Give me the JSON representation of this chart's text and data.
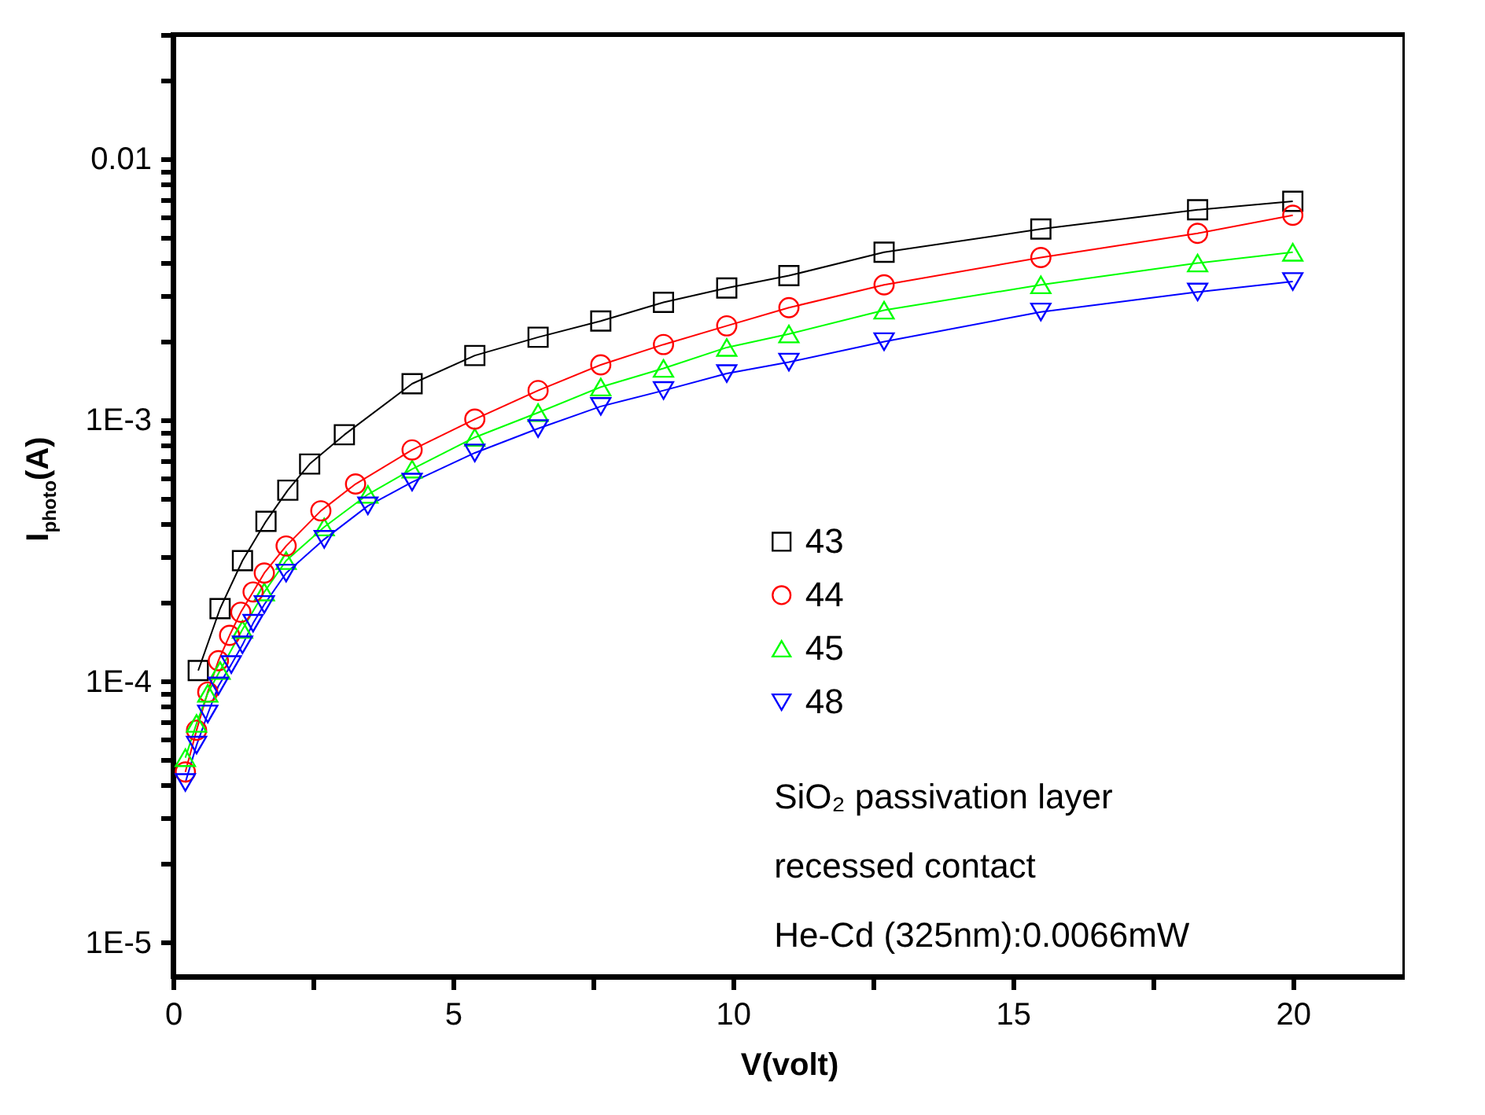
{
  "chart_data": {
    "type": "line",
    "xlabel": "V(volt)",
    "ylabel": "I$_{photo}$(A)",
    "log": "y",
    "xlim": [
      0,
      22
    ],
    "ylim": [
      7.4e-06,
      0.03
    ],
    "xticks": [
      0,
      {
        "value": 2.5,
        "label": null
      },
      5,
      {
        "value": 7.5,
        "label": null
      },
      10,
      {
        "value": 12.5,
        "label": null
      },
      15,
      {
        "value": 17.5,
        "label": null
      },
      20
    ],
    "yticks": [
      {
        "value": 1e-05,
        "label": "1E-5"
      },
      {
        "value": 2e-05,
        "label": null
      },
      {
        "value": 3e-05,
        "label": null
      },
      {
        "value": 4e-05,
        "label": null
      },
      {
        "value": 5e-05,
        "label": null
      },
      {
        "value": 6e-05,
        "label": null
      },
      {
        "value": 7e-05,
        "label": null
      },
      {
        "value": 8e-05,
        "label": null
      },
      {
        "value": 9e-05,
        "label": null
      },
      {
        "value": 0.0001,
        "label": "1E-4"
      },
      {
        "value": 0.0002,
        "label": null
      },
      {
        "value": 0.0003,
        "label": null
      },
      {
        "value": 0.0004,
        "label": null
      },
      {
        "value": 0.0005,
        "label": null
      },
      {
        "value": 0.0006,
        "label": null
      },
      {
        "value": 0.0007,
        "label": null
      },
      {
        "value": 0.0008,
        "label": null
      },
      {
        "value": 0.0009,
        "label": null
      },
      {
        "value": 0.001,
        "label": "1E-3"
      },
      {
        "value": 0.002,
        "label": null
      },
      {
        "value": 0.003,
        "label": null
      },
      {
        "value": 0.004,
        "label": null
      },
      {
        "value": 0.005,
        "label": null
      },
      {
        "value": 0.006,
        "label": null
      },
      {
        "value": 0.007,
        "label": null
      },
      {
        "value": 0.008,
        "label": null
      },
      {
        "value": 0.009,
        "label": null
      },
      {
        "value": 0.01,
        "label": "0.01"
      },
      {
        "value": 0.02,
        "label": null
      },
      {
        "value": 0.03,
        "label": null
      }
    ],
    "grid": false,
    "legend": "right",
    "line_style": "solid",
    "series": [
      {
        "name": "43",
        "color": "#000000",
        "marker": "square",
        "x": [
          0.45,
          0.84,
          1.24,
          1.66,
          2.05,
          2.44,
          3.06,
          4.27,
          5.39,
          6.52,
          7.64,
          8.76,
          9.89,
          11.0,
          12.7,
          15.5,
          18.3,
          20
        ],
        "values": [
          0.00011,
          0.00019,
          0.00029,
          0.00041,
          0.00054,
          0.00068,
          0.00088,
          0.00138,
          0.00177,
          0.00208,
          0.0024,
          0.00283,
          0.00321,
          0.00358,
          0.0044,
          0.0054,
          0.0064,
          0.0069
        ]
      },
      {
        "name": "44",
        "color": "#ff0000",
        "marker": "circle",
        "x": [
          0.22,
          0.42,
          0.62,
          0.81,
          1.01,
          1.21,
          1.43,
          1.63,
          2.02,
          2.64,
          3.26,
          4.27,
          5.39,
          6.52,
          7.64,
          8.76,
          9.89,
          11.0,
          12.7,
          15.5,
          18.3,
          20
        ],
        "values": [
          4.5e-05,
          6.5e-05,
          9.1e-05,
          0.00012,
          0.00015,
          0.000184,
          0.00022,
          0.00026,
          0.00033,
          0.00045,
          0.00057,
          0.00077,
          0.00101,
          0.0013,
          0.00163,
          0.00195,
          0.0023,
          0.0027,
          0.0033,
          0.0042,
          0.0052,
          0.0061
        ]
      },
      {
        "name": "45",
        "color": "#00ff00",
        "marker": "triangle",
        "x": [
          0.22,
          0.42,
          0.62,
          0.84,
          1.24,
          1.63,
          2.02,
          2.7,
          3.48,
          4.27,
          5.39,
          6.52,
          7.64,
          8.76,
          9.89,
          11.0,
          12.7,
          15.5,
          18.3,
          20
        ],
        "values": [
          5.1e-05,
          6.9e-05,
          9e-05,
          0.00011,
          0.000158,
          0.00022,
          0.00029,
          0.00039,
          0.00052,
          0.00065,
          0.00086,
          0.00107,
          0.00134,
          0.00158,
          0.0019,
          0.00214,
          0.00264,
          0.0033,
          0.004,
          0.0044
        ]
      },
      {
        "name": "48",
        "color": "#0000ff",
        "marker": "triangle-down",
        "x": [
          0.22,
          0.42,
          0.62,
          0.81,
          1.04,
          1.24,
          1.43,
          1.63,
          2.02,
          2.7,
          3.48,
          4.27,
          5.39,
          6.52,
          7.64,
          8.76,
          9.89,
          11.0,
          12.7,
          15.5,
          18.3,
          20
        ],
        "values": [
          4.1e-05,
          5.7e-05,
          7.5e-05,
          9.6e-05,
          0.000116,
          0.000138,
          0.000167,
          0.000197,
          0.00026,
          0.00035,
          0.00047,
          0.00058,
          0.00075,
          0.00093,
          0.00113,
          0.0013,
          0.00151,
          0.00167,
          0.002,
          0.0026,
          0.0031,
          0.0034
        ]
      }
    ],
    "annotations": [
      "SiO₂ passivation layer",
      "recessed contact",
      "He-Cd (325nm):0.0066mW"
    ]
  }
}
